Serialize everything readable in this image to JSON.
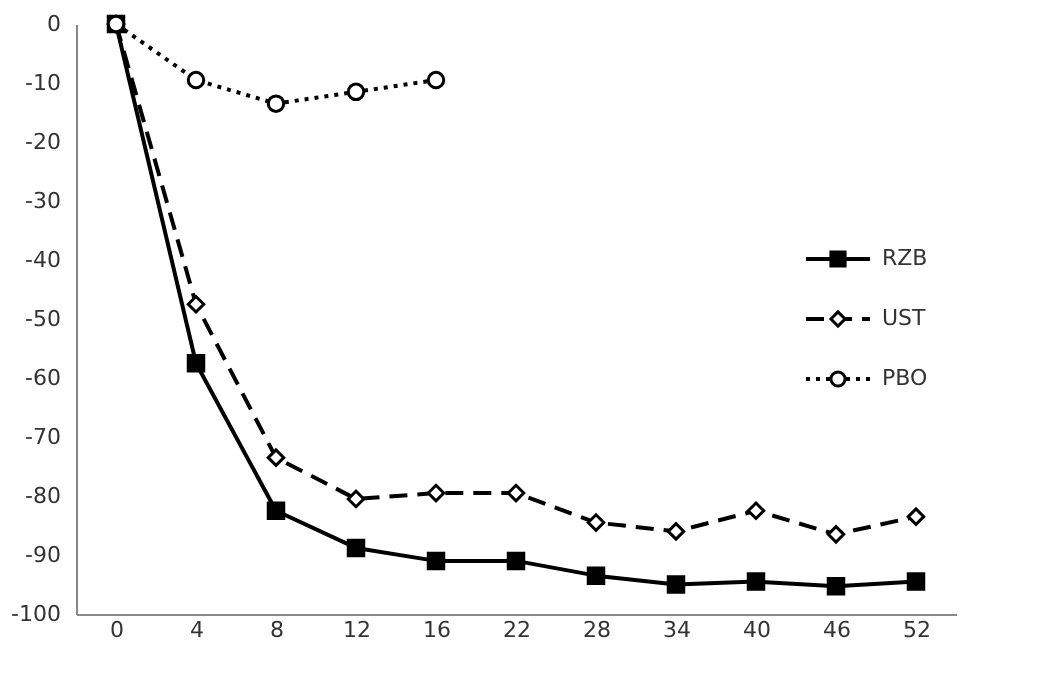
{
  "chart_data": {
    "type": "line",
    "categories": [
      "0",
      "4",
      "8",
      "12",
      "16",
      "22",
      "28",
      "34",
      "40",
      "46",
      "52"
    ],
    "series": [
      {
        "name": "RZB",
        "color": "#000000",
        "marker": "square",
        "line_style": "solid",
        "values": [
          0,
          -57.5,
          -82.5,
          -88.8,
          -91,
          -91,
          -93.5,
          -95,
          -94.5,
          -95.3,
          -94.5
        ]
      },
      {
        "name": "UST",
        "color": "#000000",
        "marker": "diamond",
        "line_style": "dashed",
        "values": [
          0,
          -47.5,
          -73.5,
          -80.5,
          -79.5,
          -79.5,
          -84.5,
          -86,
          -82.5,
          -86.5,
          -83.5
        ]
      },
      {
        "name": "PBO",
        "color": "#000000",
        "marker": "circle",
        "line_style": "dotted",
        "values": [
          0,
          -9.5,
          -13.5,
          -11.5,
          -9.5,
          null,
          null,
          null,
          null,
          null,
          null
        ]
      }
    ],
    "ylim": [
      -100,
      0
    ],
    "yticks": [
      0,
      -10,
      -20,
      -30,
      -40,
      -50,
      -60,
      -70,
      -80,
      -90,
      -100
    ],
    "grid": false,
    "legend": "right"
  }
}
